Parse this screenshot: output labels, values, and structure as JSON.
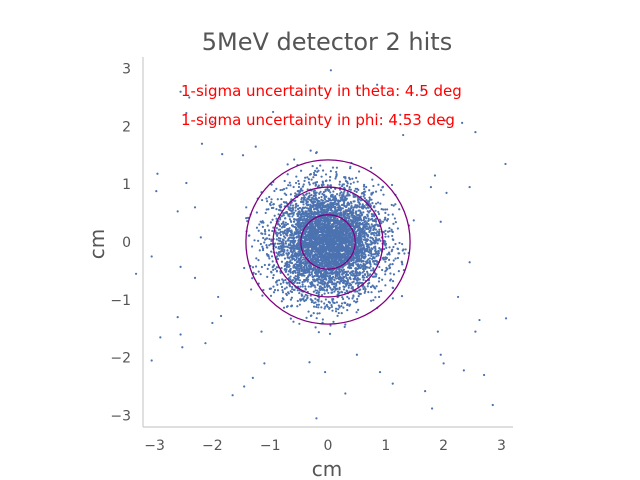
{
  "chart_data": {
    "type": "scatter",
    "title": "5MeV detector 2 hits",
    "xlabel": "cm",
    "ylabel": "cm",
    "xlim": [
      -3.2,
      3.2
    ],
    "ylim": [
      -3.2,
      3.2
    ],
    "x_ticks": [
      -3,
      -2,
      -1,
      0,
      1,
      2,
      3
    ],
    "y_ticks": [
      -3,
      -2,
      -1,
      0,
      1,
      2,
      3
    ],
    "x_tick_labels": [
      "−3",
      "−2",
      "−1",
      "0",
      "1",
      "2",
      "3"
    ],
    "y_tick_labels": [
      "−3",
      "−2",
      "−1",
      "0",
      "1",
      "2",
      "3"
    ],
    "grid": false,
    "point_color": "#4c72b0",
    "circle_color": "#800080",
    "annotation_color": "#ff0000",
    "annotations": [
      "1-sigma uncertainty in theta: 4.5 deg",
      "1-sigma uncertainty in phi: 4.53 deg"
    ],
    "circles": [
      {
        "cx": 0,
        "cy": 0,
        "r": 0.47
      },
      {
        "cx": 0,
        "cy": 0,
        "r": 0.95
      },
      {
        "cx": 0,
        "cy": 0,
        "r": 1.42
      }
    ],
    "outlier_points": [
      [
        0.05,
        2.97
      ],
      [
        1.62,
        2.62
      ],
      [
        2.32,
        2.06
      ],
      [
        3.07,
        1.35
      ],
      [
        -1.47,
        1.5
      ],
      [
        -0.3,
        1.58
      ],
      [
        -0.55,
        2.55
      ],
      [
        0.85,
        2.72
      ],
      [
        -1.83,
        1.52
      ],
      [
        -2.18,
        1.7
      ],
      [
        -2.4,
        2.5
      ],
      [
        -2.0,
        2.08
      ],
      [
        -2.55,
        2.6
      ],
      [
        -2.45,
        2.23
      ],
      [
        -2.95,
        1.18
      ],
      [
        -2.97,
        0.88
      ],
      [
        -2.6,
        0.53
      ],
      [
        -2.45,
        1.02
      ],
      [
        -2.3,
        0.6
      ],
      [
        -2.2,
        0.08
      ],
      [
        -2.3,
        -0.62
      ],
      [
        -2.55,
        -0.43
      ],
      [
        -3.05,
        -0.25
      ],
      [
        -3.32,
        -0.55
      ],
      [
        -2.6,
        -1.3
      ],
      [
        -2.55,
        -1.6
      ],
      [
        -2.52,
        -1.82
      ],
      [
        -1.9,
        -0.95
      ],
      [
        -2.0,
        -1.4
      ],
      [
        -2.12,
        -1.75
      ],
      [
        -1.85,
        -1.28
      ],
      [
        -1.45,
        -2.5
      ],
      [
        -1.1,
        -2.1
      ],
      [
        -1.3,
        -2.35
      ],
      [
        -3.05,
        -2.05
      ],
      [
        -2.9,
        -1.65
      ],
      [
        -0.32,
        -2.08
      ],
      [
        -0.05,
        -2.25
      ],
      [
        -0.2,
        -3.05
      ],
      [
        0.5,
        -1.95
      ],
      [
        0.9,
        -2.25
      ],
      [
        1.12,
        -2.45
      ],
      [
        0.3,
        -2.62
      ],
      [
        1.68,
        -2.58
      ],
      [
        2.35,
        -2.22
      ],
      [
        2.0,
        -2.1
      ],
      [
        2.55,
        -1.55
      ],
      [
        2.7,
        -2.3
      ],
      [
        1.8,
        -2.88
      ],
      [
        2.62,
        -1.35
      ],
      [
        3.08,
        -1.32
      ],
      [
        2.85,
        -2.82
      ],
      [
        1.9,
        -1.55
      ],
      [
        2.25,
        -0.95
      ],
      [
        2.45,
        -0.35
      ],
      [
        1.95,
        0.35
      ],
      [
        2.05,
        0.85
      ],
      [
        1.78,
        0.95
      ],
      [
        1.85,
        1.15
      ],
      [
        2.45,
        0.95
      ],
      [
        1.3,
        1.85
      ],
      [
        2.02,
        2.1
      ],
      [
        1.95,
        -1.95
      ],
      [
        -0.95,
        2.25
      ],
      [
        -1.45,
        -0.45
      ],
      [
        -1.15,
        -1.55
      ],
      [
        -1.25,
        1.65
      ],
      [
        1.25,
        2.2
      ],
      [
        2.55,
        1.9
      ],
      [
        -1.65,
        -2.65
      ]
    ]
  }
}
